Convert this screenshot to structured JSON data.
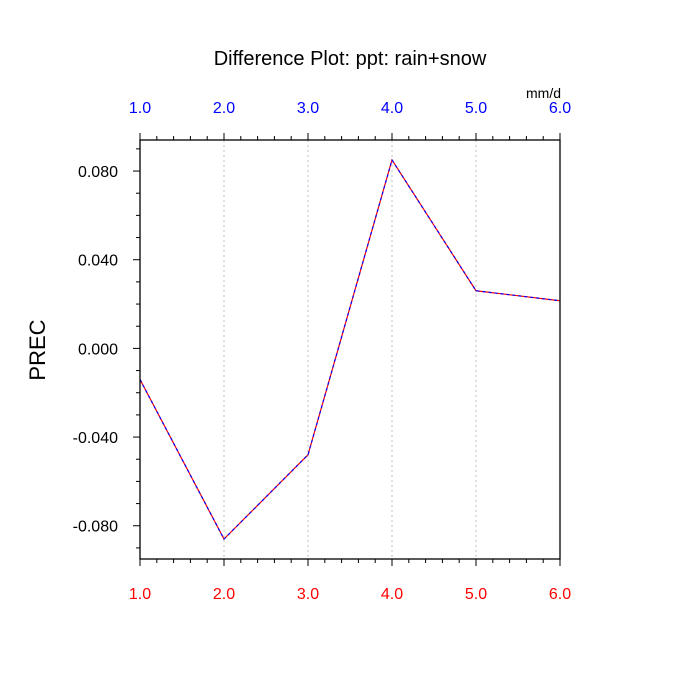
{
  "chart_data": {
    "type": "line",
    "title": "Difference Plot: ppt: rain+snow",
    "units_label": "mm/d",
    "ylabel": "PREC",
    "xlim": [
      1.0,
      6.0
    ],
    "ylim": [
      -0.095,
      0.094
    ],
    "x_ticks": [
      "1.0",
      "2.0",
      "3.0",
      "4.0",
      "5.0",
      "6.0"
    ],
    "y_ticks": [
      "0.080",
      "0.040",
      "0.000",
      "-0.040",
      "-0.080"
    ],
    "y_tick_values": [
      0.08,
      0.04,
      0.0,
      -0.04,
      -0.08
    ],
    "grid": "vertical-dotted",
    "x": [
      1.0,
      2.0,
      3.0,
      4.0,
      5.0,
      6.0
    ],
    "series": [
      {
        "values": [
          -0.014,
          -0.086,
          -0.048,
          0.085,
          0.026,
          0.0215
        ]
      }
    ],
    "colors": {
      "top_tick_labels": "#0000ff",
      "bottom_tick_labels": "#ff0000",
      "line_primary": "#ff0000",
      "line_secondary": "#0000ff",
      "grid": "#bfbfbf",
      "axis": "#000000"
    }
  }
}
